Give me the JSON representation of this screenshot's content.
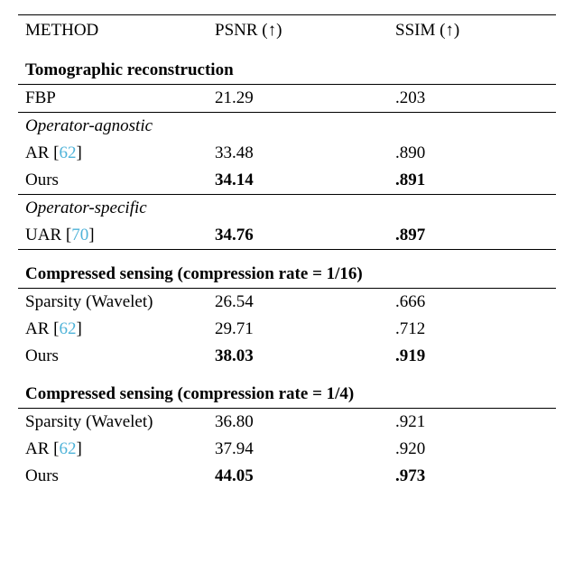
{
  "header": {
    "method": "METHOD",
    "psnr": "PSNR (↑)",
    "ssim": "SSIM (↑)"
  },
  "sections": {
    "tomo": {
      "title": "Tomographic reconstruction",
      "rows": {
        "fbp": {
          "method": "FBP",
          "psnr": "21.29",
          "ssim": ".203"
        }
      },
      "sub_agnostic_label": "Operator-agnostic",
      "agnostic_rows": {
        "ar": {
          "method_pre": "AR [",
          "cite": "62",
          "method_post": "]",
          "psnr": "33.48",
          "ssim": ".890"
        },
        "ours": {
          "method": "Ours",
          "psnr": "34.14",
          "ssim": ".891"
        }
      },
      "sub_specific_label": "Operator-specific",
      "specific_rows": {
        "uar": {
          "method_pre": "UAR [",
          "cite": "70",
          "method_post": "]",
          "psnr": "34.76",
          "ssim": ".897"
        }
      }
    },
    "cs16": {
      "title": "Compressed sensing (compression rate = 1/16)",
      "rows": {
        "sparsity": {
          "method": "Sparsity (Wavelet)",
          "psnr": "26.54",
          "ssim": ".666"
        },
        "ar": {
          "method_pre": "AR [",
          "cite": "62",
          "method_post": "]",
          "psnr": "29.71",
          "ssim": ".712"
        },
        "ours": {
          "method": "Ours",
          "psnr": "38.03",
          "ssim": ".919"
        }
      }
    },
    "cs4": {
      "title": "Compressed sensing (compression rate = 1/4)",
      "rows": {
        "sparsity": {
          "method": "Sparsity (Wavelet)",
          "psnr": "36.80",
          "ssim": ".921"
        },
        "ar": {
          "method_pre": "AR [",
          "cite": "62",
          "method_post": "]",
          "psnr": "37.94",
          "ssim": ".920"
        },
        "ours": {
          "method": "Ours",
          "psnr": "44.05",
          "ssim": ".973"
        }
      }
    }
  },
  "style": {
    "cite_color": "#4fb3d9",
    "font_family": "Times New Roman",
    "font_size_pt": 14
  }
}
